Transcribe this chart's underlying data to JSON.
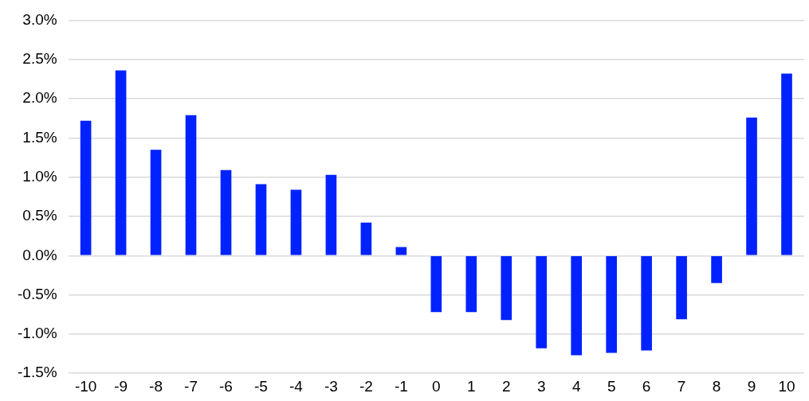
{
  "chart_data": {
    "type": "bar",
    "categories": [
      "-10",
      "-9",
      "-8",
      "-7",
      "-6",
      "-5",
      "-4",
      "-3",
      "-2",
      "-1",
      "0",
      "1",
      "2",
      "3",
      "4",
      "5",
      "6",
      "7",
      "8",
      "9",
      "10"
    ],
    "values": [
      1.72,
      2.36,
      1.35,
      1.79,
      1.09,
      0.91,
      0.84,
      1.03,
      0.42,
      0.11,
      -0.72,
      -0.72,
      -0.82,
      -1.18,
      -1.27,
      -1.24,
      -1.21,
      -0.81,
      -0.35,
      1.76,
      2.32
    ],
    "color": "#0022ff",
    "ylim": [
      -1.5,
      3.0
    ],
    "yticks": [
      {
        "value": -1.5,
        "label": "-1.5%"
      },
      {
        "value": -1.0,
        "label": "-1.0%"
      },
      {
        "value": -0.5,
        "label": "-0.5%"
      },
      {
        "value": 0,
        "label": "0.0%"
      },
      {
        "value": 0.5,
        "label": "0.5%"
      },
      {
        "value": 1.0,
        "label": "1.0%"
      },
      {
        "value": 1.5,
        "label": "1.5%"
      },
      {
        "value": 2.0,
        "label": "2.0%"
      },
      {
        "value": 2.5,
        "label": "2.5%"
      },
      {
        "value": 3.0,
        "label": "3.0%"
      }
    ],
    "grid": "y",
    "legend": false
  }
}
